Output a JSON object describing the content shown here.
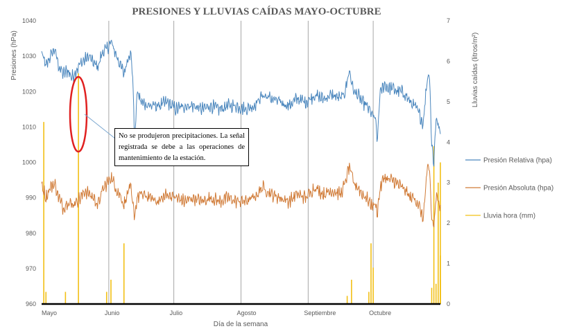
{
  "chart_data": {
    "type": "line",
    "title": "PRESIONES Y LLUVIAS CAÍDAS MAYO-OCTUBRE",
    "xlabel": "Día de la semana",
    "ylabel_left": "Presiones (hPa)",
    "ylabel_right": "Lluvias caídas (litros/m²)",
    "ylim_left": [
      960,
      1040
    ],
    "ylim_right": [
      0,
      7
    ],
    "yticks_left": [
      "960",
      "970",
      "980",
      "990",
      "1000",
      "1010",
      "1020",
      "1030",
      "1040"
    ],
    "yticks_right": [
      "0",
      "1",
      "2",
      "3",
      "4",
      "5",
      "6",
      "7"
    ],
    "months": [
      "Mayo",
      "Junio",
      "Julio",
      "Agosto",
      "Septiembre",
      "Octubre"
    ],
    "month_start_days": [
      0,
      31,
      61,
      92,
      123,
      153
    ],
    "total_days": 184,
    "grid": "vertical at month starts",
    "legend_position": "right",
    "series": [
      {
        "name": "Presión Relativa (hpa)",
        "color": "#4a86bd",
        "axis": "left",
        "points": [
          [
            0,
            1031
          ],
          [
            2,
            1027
          ],
          [
            4,
            1030
          ],
          [
            6,
            1032
          ],
          [
            8,
            1027
          ],
          [
            10,
            1025
          ],
          [
            12,
            1026
          ],
          [
            14,
            1024
          ],
          [
            16,
            1026
          ],
          [
            18,
            1028
          ],
          [
            20,
            1029
          ],
          [
            22,
            1030
          ],
          [
            24,
            1028
          ],
          [
            26,
            1027
          ],
          [
            28,
            1031
          ],
          [
            30,
            1032
          ],
          [
            32,
            1034
          ],
          [
            34,
            1031
          ],
          [
            36,
            1028
          ],
          [
            38,
            1025
          ],
          [
            40,
            1030
          ],
          [
            41,
            1031
          ],
          [
            42,
            1025
          ],
          [
            43,
            1004
          ],
          [
            44,
            1020
          ],
          [
            46,
            1017
          ],
          [
            50,
            1016
          ],
          [
            54,
            1016
          ],
          [
            58,
            1017
          ],
          [
            62,
            1015
          ],
          [
            66,
            1016
          ],
          [
            70,
            1016
          ],
          [
            74,
            1015
          ],
          [
            78,
            1016
          ],
          [
            82,
            1015
          ],
          [
            86,
            1016
          ],
          [
            90,
            1016
          ],
          [
            94,
            1015
          ],
          [
            98,
            1016
          ],
          [
            102,
            1019
          ],
          [
            106,
            1018
          ],
          [
            110,
            1017
          ],
          [
            114,
            1016
          ],
          [
            118,
            1018
          ],
          [
            122,
            1017
          ],
          [
            126,
            1019
          ],
          [
            130,
            1018
          ],
          [
            134,
            1019
          ],
          [
            138,
            1018
          ],
          [
            140,
            1020
          ],
          [
            142,
            1026
          ],
          [
            144,
            1020
          ],
          [
            146,
            1019
          ],
          [
            148,
            1017
          ],
          [
            150,
            1016
          ],
          [
            152,
            1014
          ],
          [
            154,
            1012
          ],
          [
            155,
            1006
          ],
          [
            156,
            1019
          ],
          [
            158,
            1022
          ],
          [
            160,
            1021
          ],
          [
            162,
            1021
          ],
          [
            164,
            1020
          ],
          [
            166,
            1020
          ],
          [
            168,
            1019
          ],
          [
            170,
            1017
          ],
          [
            172,
            1016
          ],
          [
            174,
            1014
          ],
          [
            176,
            1011
          ],
          [
            178,
            1024
          ],
          [
            179,
            1025
          ],
          [
            180,
            1005
          ],
          [
            181,
            1000
          ],
          [
            182,
            1013
          ],
          [
            184,
            1008
          ]
        ]
      },
      {
        "name": "Presión Absoluta (hpa)",
        "color": "#d07a36",
        "axis": "left",
        "points": [
          [
            0,
            994
          ],
          [
            2,
            990
          ],
          [
            4,
            993
          ],
          [
            6,
            994
          ],
          [
            8,
            990
          ],
          [
            10,
            987
          ],
          [
            12,
            989
          ],
          [
            14,
            988
          ],
          [
            16,
            989
          ],
          [
            18,
            990
          ],
          [
            20,
            992
          ],
          [
            22,
            991
          ],
          [
            24,
            990
          ],
          [
            26,
            988
          ],
          [
            28,
            992
          ],
          [
            30,
            994
          ],
          [
            32,
            996
          ],
          [
            34,
            993
          ],
          [
            36,
            991
          ],
          [
            38,
            988
          ],
          [
            40,
            992
          ],
          [
            41,
            993
          ],
          [
            42,
            988
          ],
          [
            43,
            985
          ],
          [
            44,
            990
          ],
          [
            46,
            991
          ],
          [
            50,
            990
          ],
          [
            54,
            989
          ],
          [
            58,
            991
          ],
          [
            62,
            990
          ],
          [
            66,
            989
          ],
          [
            70,
            990
          ],
          [
            74,
            989
          ],
          [
            78,
            990
          ],
          [
            82,
            989
          ],
          [
            86,
            990
          ],
          [
            90,
            989
          ],
          [
            94,
            989
          ],
          [
            98,
            990
          ],
          [
            102,
            993
          ],
          [
            106,
            991
          ],
          [
            110,
            990
          ],
          [
            114,
            989
          ],
          [
            118,
            991
          ],
          [
            122,
            990
          ],
          [
            126,
            993
          ],
          [
            130,
            991
          ],
          [
            134,
            992
          ],
          [
            138,
            991
          ],
          [
            140,
            994
          ],
          [
            142,
            999
          ],
          [
            144,
            994
          ],
          [
            146,
            993
          ],
          [
            148,
            991
          ],
          [
            150,
            990
          ],
          [
            152,
            988
          ],
          [
            154,
            988
          ],
          [
            155,
            986
          ],
          [
            156,
            992
          ],
          [
            158,
            996
          ],
          [
            160,
            995
          ],
          [
            162,
            995
          ],
          [
            164,
            994
          ],
          [
            166,
            993
          ],
          [
            168,
            992
          ],
          [
            170,
            990
          ],
          [
            172,
            990
          ],
          [
            174,
            988
          ],
          [
            176,
            984
          ],
          [
            178,
            998
          ],
          [
            179,
            998
          ],
          [
            180,
            984
          ],
          [
            181,
            982
          ],
          [
            182,
            990
          ],
          [
            184,
            988
          ]
        ]
      },
      {
        "name": "Lluvia hora (mm)",
        "color": "#f2c015",
        "axis": "right",
        "points": [
          [
            1,
            4.5
          ],
          [
            2,
            0.3
          ],
          [
            11,
            0.3
          ],
          [
            17,
            5.7
          ],
          [
            30,
            0.3
          ],
          [
            32,
            0.6
          ],
          [
            38,
            1.5
          ],
          [
            141,
            0.2
          ],
          [
            143,
            0.6
          ],
          [
            151,
            0.3
          ],
          [
            152,
            1.5
          ],
          [
            153,
            0.9
          ],
          [
            180,
            0.4
          ],
          [
            181,
            3.9
          ],
          [
            182,
            0.5
          ],
          [
            183,
            3.0
          ],
          [
            184,
            3.5
          ],
          [
            185,
            1.2
          ],
          [
            186,
            0.6
          ]
        ]
      }
    ],
    "annotation": {
      "text": "No se produjeron precipitaciones. La señal registrada se debe a las operaciones de mantenimiento de la estación."
    }
  }
}
